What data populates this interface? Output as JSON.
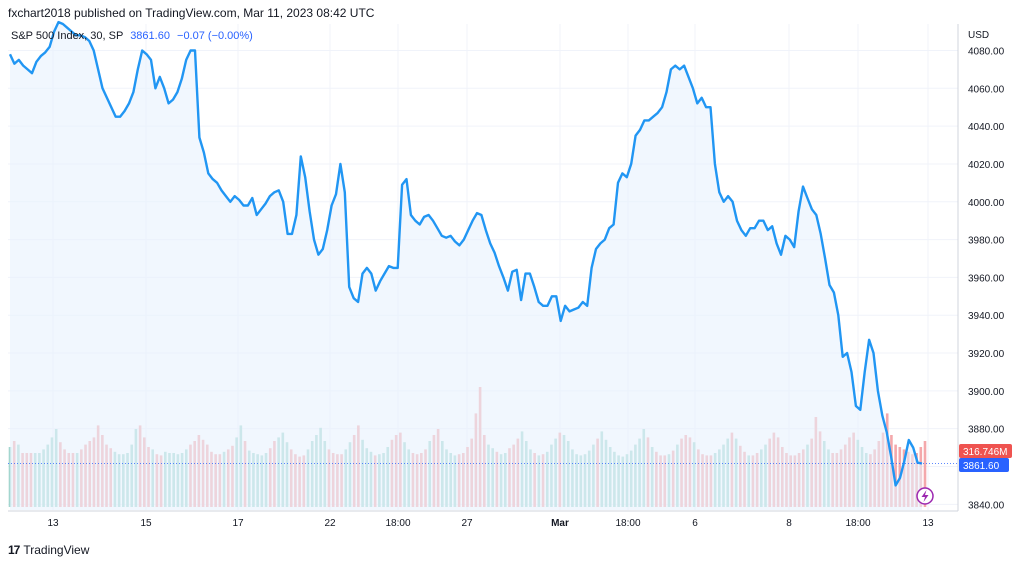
{
  "header": {
    "publish_text": "fxchart2018 published on TradingView.com, Mar 11, 2023 08:42 UTC"
  },
  "legend": {
    "symbol": "S&P 500 Index, 30, SP",
    "last": "3861.60",
    "change": "−0.07 (−0.00%)"
  },
  "axis": {
    "currency": "USD",
    "price_ticks": [
      "3840.00",
      "3860.00",
      "3880.00",
      "3900.00",
      "3920.00",
      "3940.00",
      "3960.00",
      "3980.00",
      "4000.00",
      "4020.00",
      "4040.00",
      "4060.00",
      "4080.00"
    ],
    "time_ticks": [
      "13",
      "15",
      "17",
      "22",
      "18:00",
      "27",
      "Mar",
      "18:00",
      "6",
      "8",
      "18:00",
      "13"
    ]
  },
  "badges": {
    "volume": "316.746M",
    "price": "3861.60"
  },
  "footer": {
    "brand": "TradingView",
    "logo": "17"
  },
  "colors": {
    "line": "#2196f3",
    "area": "#e8f1fd",
    "vol_up": "#a3d6cf",
    "vol_down": "#f4a8ab",
    "vol_badge": "#ef5350",
    "price_badge": "#2962ff"
  },
  "chart_data": {
    "type": "line",
    "title": "S&P 500 Index, 30, SP",
    "ylabel": "USD",
    "ylim": [
      3837,
      4094
    ],
    "last_price": 3861.6,
    "x_labels": [
      "13",
      "15",
      "17",
      "22",
      "18:00",
      "27",
      "Mar",
      "18:00",
      "6",
      "8",
      "18:00",
      "13"
    ],
    "price": [
      4078,
      4073,
      4075,
      4072,
      4070,
      4068,
      4074,
      4077,
      4079,
      4082,
      4090,
      4095,
      4094,
      4092,
      4090,
      4088,
      4088,
      4087,
      4085,
      4080,
      4070,
      4060,
      4055,
      4050,
      4045,
      4045,
      4048,
      4052,
      4058,
      4070,
      4080,
      4078,
      4075,
      4060,
      4066,
      4060,
      4052,
      4054,
      4058,
      4065,
      4075,
      4080,
      4080,
      4034,
      4026,
      4015,
      4012,
      4010,
      4006,
      4003,
      4000,
      4003,
      4001,
      3998,
      3998,
      4002,
      3993,
      3996,
      3999,
      4003,
      4005,
      4006,
      4000,
      3983,
      3983,
      3993,
      4024,
      4013,
      3995,
      3980,
      3972,
      3975,
      3985,
      3998,
      4004,
      4020,
      4005,
      3955,
      3949,
      3947,
      3962,
      3965,
      3962,
      3953,
      3958,
      3962,
      3966,
      3965,
      3965,
      4009,
      4012,
      3993,
      3990,
      3988,
      3992,
      3993,
      3990,
      3986,
      3982,
      3981,
      3982,
      3979,
      3977,
      3980,
      3985,
      3990,
      3994,
      3993,
      3985,
      3978,
      3973,
      3966,
      3960,
      3953,
      3963,
      3964,
      3948,
      3962,
      3962,
      3955,
      3947,
      3945,
      3945,
      3950,
      3950,
      3937,
      3945,
      3942,
      3943,
      3944,
      3947,
      3945,
      3965,
      3975,
      3978,
      3980,
      3986,
      3988,
      4010,
      4015,
      4013,
      4020,
      4035,
      4038,
      4043,
      4043,
      4045,
      4047,
      4050,
      4058,
      4070,
      4072,
      4070,
      4072,
      4066,
      4060,
      4052,
      4055,
      4050,
      4050,
      4020,
      4005,
      4000,
      4003,
      4000,
      3990,
      3985,
      3982,
      3986,
      3986,
      3990,
      3990,
      3985,
      3987,
      3978,
      3972,
      3982,
      3980,
      3976,
      3995,
      4008,
      4002,
      3996,
      3993,
      3983,
      3970,
      3956,
      3952,
      3940,
      3918,
      3920,
      3910,
      3892,
      3890,
      3910,
      3927,
      3920,
      3900,
      3887,
      3878,
      3865,
      3850,
      3854,
      3863,
      3874,
      3870,
      3862,
      3861.6
    ],
    "volume_pct": [
      50,
      55,
      52,
      45,
      45,
      45,
      45,
      45,
      48,
      52,
      58,
      65,
      54,
      48,
      45,
      45,
      45,
      48,
      52,
      55,
      58,
      68,
      60,
      52,
      49,
      46,
      44,
      44,
      45,
      52,
      65,
      68,
      58,
      50,
      48,
      44,
      43,
      46,
      45,
      45,
      44,
      45,
      48,
      52,
      55,
      60,
      56,
      52,
      46,
      44,
      44,
      46,
      48,
      51,
      58,
      68,
      55,
      47,
      45,
      44,
      43,
      45,
      49,
      55,
      58,
      62,
      54,
      48,
      44,
      42,
      43,
      48,
      55,
      60,
      66,
      55,
      48,
      45,
      44,
      44,
      48,
      54,
      60,
      68,
      56,
      49,
      46,
      43,
      44,
      45,
      50,
      56,
      60,
      62,
      54,
      48,
      45,
      44,
      45,
      48,
      55,
      60,
      65,
      55,
      48,
      45,
      43,
      44,
      45,
      50,
      57,
      78,
      100,
      60,
      52,
      49,
      46,
      44,
      45,
      49,
      52,
      57,
      63,
      55,
      48,
      45,
      43,
      44,
      46,
      52,
      57,
      62,
      60,
      55,
      48,
      44,
      43,
      44,
      47,
      52,
      57,
      63,
      56,
      50,
      46,
      43,
      42,
      44,
      47,
      52,
      57,
      65,
      58,
      50,
      46,
      43,
      43,
      44,
      47,
      52,
      57,
      60,
      58,
      54,
      48,
      44,
      43,
      43,
      45,
      48,
      52,
      57,
      62,
      57,
      51,
      46,
      43,
      43,
      45,
      48,
      52,
      57,
      62,
      58,
      50,
      45,
      43,
      43,
      45,
      48,
      52,
      57,
      75,
      63,
      55,
      48,
      45,
      45,
      48,
      52,
      58,
      62,
      56,
      50,
      45,
      44,
      48,
      55,
      62,
      78,
      60,
      52,
      50,
      48,
      46,
      44,
      45,
      50,
      55
    ]
  }
}
